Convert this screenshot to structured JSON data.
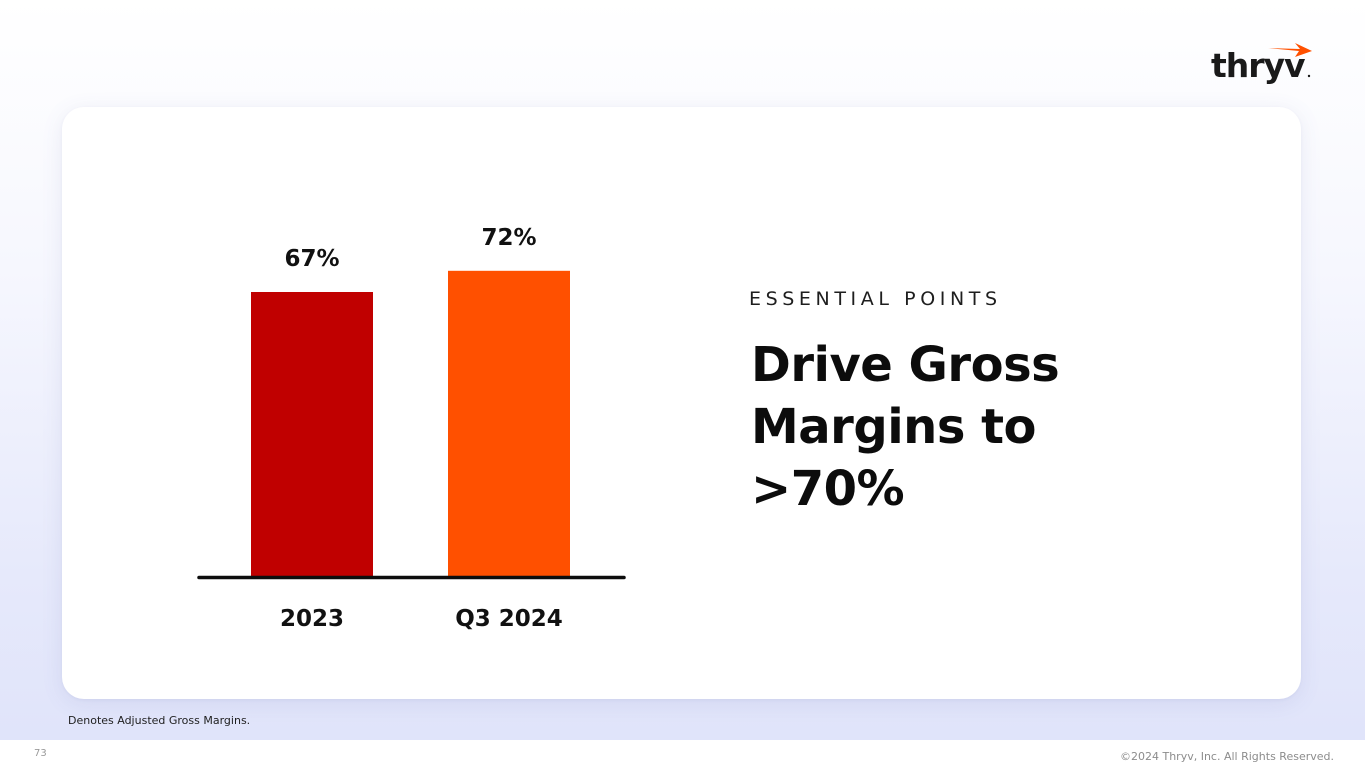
{
  "brand": {
    "logo_text": "thryv",
    "logo_color": "#1a1a1a",
    "accent_color": "#ff5000"
  },
  "section": {
    "eyebrow": "ESSENTIAL POINTS",
    "headline": "Drive Gross Margins to >70%"
  },
  "chart_data": {
    "type": "bar",
    "categories": [
      "2023",
      "Q3 2024"
    ],
    "values": [
      67,
      72
    ],
    "value_labels": [
      "67%",
      "72%"
    ],
    "colors": [
      "#c00000",
      "#ff5000"
    ],
    "unit": "%",
    "title": "",
    "xlabel": "",
    "ylabel": "",
    "grid": false,
    "legend": "none"
  },
  "footnote": "Denotes Adjusted Gross Margins.",
  "footer": {
    "page_number": "73",
    "copyright": "©2024 Thryv, Inc. All Rights Reserved."
  }
}
